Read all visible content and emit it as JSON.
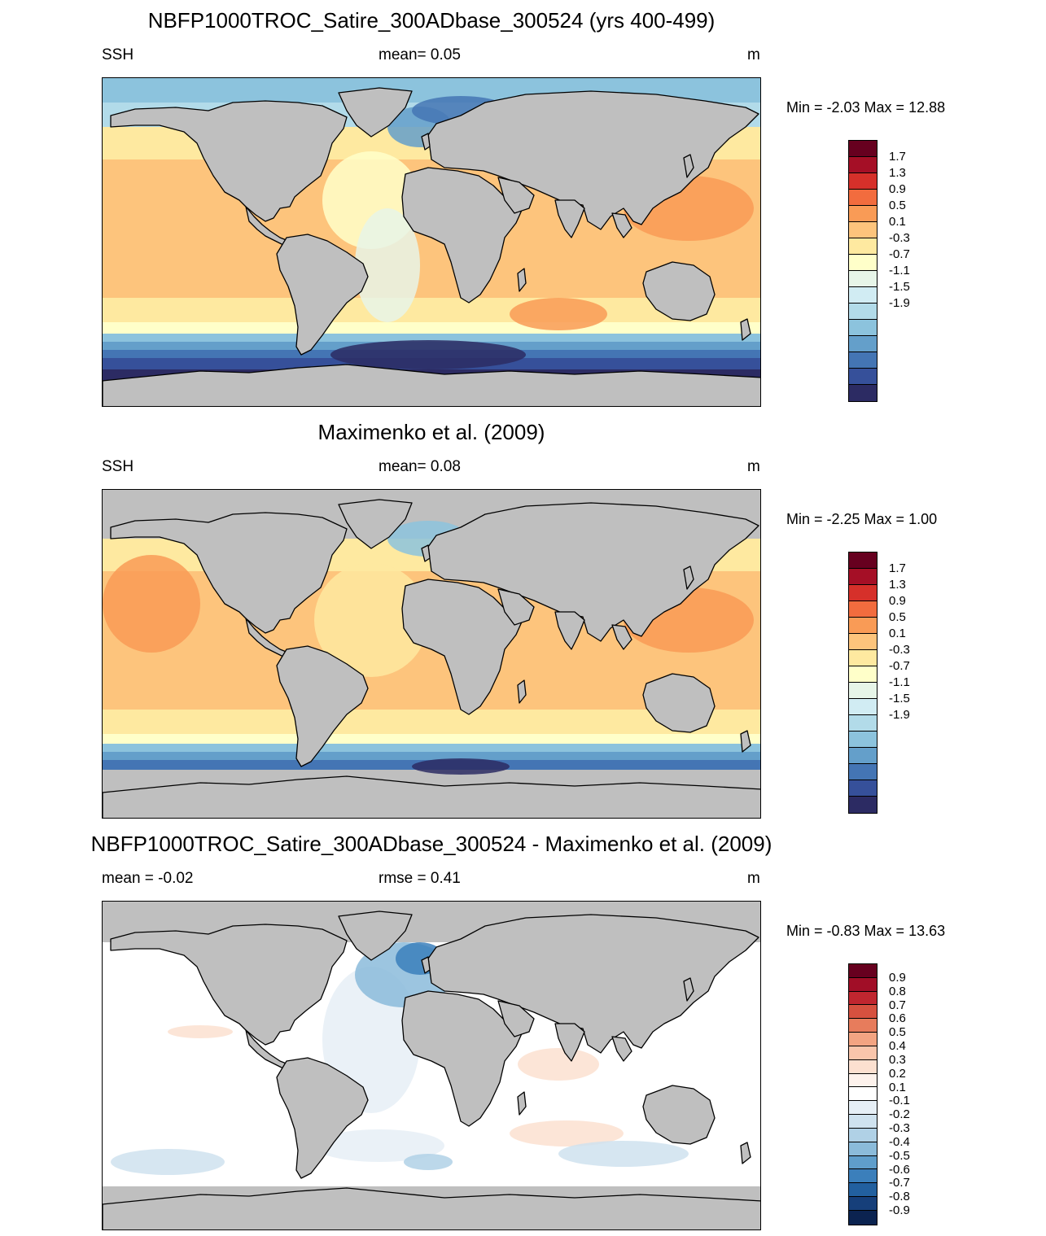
{
  "panels": [
    {
      "id": "model",
      "title": "NBFP1000TROC_Satire_300ADbase_300524 (yrs 400-499)",
      "left_label": "SSH",
      "center_label": "mean=   0.05",
      "units": "m",
      "minmax": "Min =  -2.03 Max =  12.88",
      "colorbar": {
        "labels": [
          "1.7",
          "1.3",
          "0.9",
          "0.5",
          "0.1",
          "-0.3",
          "-0.7",
          "-1.1",
          "-1.5",
          "-1.9"
        ],
        "colors": [
          "#67001f",
          "#a50f26",
          "#d6302a",
          "#f26c3e",
          "#f99b56",
          "#fdc47c",
          "#fee9a0",
          "#ffffc9",
          "#e7f5e8",
          "#d1ecf3",
          "#b2dbe9",
          "#8cc3dd",
          "#649fca",
          "#4475b4",
          "#36509a",
          "#2c2b63"
        ]
      },
      "map_style": "model"
    },
    {
      "id": "obs",
      "title": "Maximenko et al. (2009)",
      "left_label": "SSH",
      "center_label": "mean=   0.08",
      "units": "m",
      "minmax": "Min =  -2.25 Max =   1.00",
      "colorbar": {
        "labels": [
          "1.7",
          "1.3",
          "0.9",
          "0.5",
          "0.1",
          "-0.3",
          "-0.7",
          "-1.1",
          "-1.5",
          "-1.9"
        ],
        "colors": [
          "#67001f",
          "#a50f26",
          "#d6302a",
          "#f26c3e",
          "#f99b56",
          "#fdc47c",
          "#fee9a0",
          "#ffffc9",
          "#e7f5e8",
          "#d1ecf3",
          "#b2dbe9",
          "#8cc3dd",
          "#649fca",
          "#4475b4",
          "#36509a",
          "#2c2b63"
        ]
      },
      "map_style": "obs"
    },
    {
      "id": "diff",
      "title": "NBFP1000TROC_Satire_300ADbase_300524 - Maximenko et al. (2009)",
      "left_label": "mean =  -0.02",
      "center_label": "rmse =   0.41",
      "units": "m",
      "minmax": "Min =  -0.83 Max =  13.63",
      "colorbar": {
        "labels": [
          "0.9",
          "0.8",
          "0.7",
          "0.6",
          "0.5",
          "0.4",
          "0.3",
          "0.2",
          "0.1",
          "-0.1",
          "-0.2",
          "-0.3",
          "-0.4",
          "-0.5",
          "-0.6",
          "-0.7",
          "-0.8",
          "-0.9"
        ],
        "colors": [
          "#67001f",
          "#a10e27",
          "#c0262f",
          "#d6513f",
          "#e77c5c",
          "#f3a482",
          "#f9c5ab",
          "#fce0d0",
          "#fdf2ec",
          "#ffffff",
          "#e6eff6",
          "#cfe2ef",
          "#b0d1e6",
          "#8bbbda",
          "#5f9ecb",
          "#3b7fbb",
          "#22609f",
          "#163f7a",
          "#0b2350"
        ]
      },
      "map_style": "diff"
    }
  ]
}
